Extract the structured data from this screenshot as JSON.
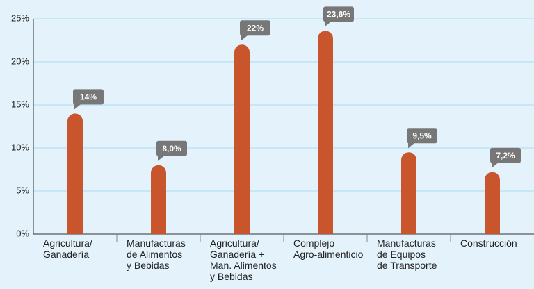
{
  "chart_data": {
    "type": "bar",
    "categories": [
      "Agricultura/\nGanadería",
      "Manufacturas\nde Alimentos\ny Bebidas",
      "Agricultura/\nGanadería +\nMan. Alimentos\ny Bebidas",
      "Complejo\nAgro-alimenticio",
      "Manufacturas\nde Equipos\nde Transporte",
      "Construcción"
    ],
    "values": [
      14,
      8.0,
      22,
      23.6,
      9.5,
      7.2
    ],
    "value_labels": [
      "14%",
      "8,0%",
      "22%",
      "23,6%",
      "9,5%",
      "7,2%"
    ],
    "color": "#c8552b",
    "ylim": [
      0,
      25
    ],
    "yticks": [
      {
        "value": 0,
        "label": "0%"
      },
      {
        "value": 5,
        "label": "5%"
      },
      {
        "value": 10,
        "label": "10%"
      },
      {
        "value": 15,
        "label": "15%"
      },
      {
        "value": 20,
        "label": "20%"
      },
      {
        "value": 25,
        "label": "25%"
      }
    ],
    "grid": true
  }
}
